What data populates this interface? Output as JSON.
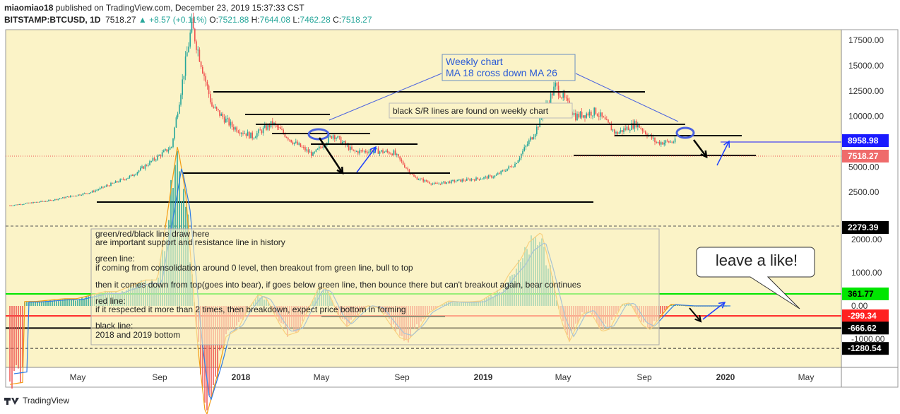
{
  "header": {
    "publisher": "miaomiao18",
    "published_line": " published on TradingView.com, December 23, 2019 15:37:33 CST",
    "symbol": "BITSTAMP:BTCUSD, 1D",
    "last": "7518.27",
    "change": "▲ +8.57 (+0.11%)",
    "o_label": "O:",
    "o_val": "7521.88",
    "h_label": "H:",
    "h_val": "7644.08",
    "l_label": "L:",
    "l_val": "7462.28",
    "c_label": "C:",
    "c_val": "7518.27"
  },
  "footer": {
    "brand": "TradingView"
  },
  "colors": {
    "background": "#fbf3c7",
    "candle_up": "#26a69a",
    "candle_down": "#ef5350",
    "green_line": "#00e600",
    "red_line": "#ff2020",
    "arrow_blue": "#1a3cff",
    "annotation_border": "#6a8fc0"
  },
  "chart_data": [
    {
      "type": "line",
      "subtype": "candlestick",
      "title": "BITSTAMP:BTCUSD, 1D",
      "x": [
        "2017-03",
        "2017-05",
        "2017-07",
        "2017-09",
        "2017-11",
        "2017-12",
        "2018-01",
        "2018-02",
        "2018-03",
        "2018-04",
        "2018-05",
        "2018-06",
        "2018-07",
        "2018-08",
        "2018-09",
        "2018-10",
        "2018-11",
        "2018-12",
        "2019-01",
        "2019-02",
        "2019-03",
        "2019-04",
        "2019-05",
        "2019-06",
        "2019-07",
        "2019-08",
        "2019-09",
        "2019-10",
        "2019-11",
        "2019-12"
      ],
      "series": [
        {
          "values": [
            1200,
            1700,
            2500,
            4100,
            7000,
            19000,
            11000,
            9000,
            8000,
            9300,
            7500,
            6200,
            8200,
            6500,
            6600,
            6400,
            4000,
            3300,
            3600,
            3800,
            4100,
            5300,
            8500,
            13000,
            10000,
            10500,
            8300,
            9300,
            7400,
            7518
          ]
        }
      ],
      "ylim": [
        0,
        19500
      ],
      "yticks": [
        "2500.00",
        "5000.00",
        "7500.00",
        "10000.00",
        "12500.00",
        "15000.00",
        "17500.00"
      ],
      "xticks": [
        "May",
        "Sep",
        "2018",
        "May",
        "Sep",
        "2019",
        "May",
        "Sep",
        "2020",
        "May"
      ],
      "price_labels": {
        "hline": "8958.98",
        "last": "7518.27"
      },
      "annotations": [
        "Weekly chart",
        "MA 18 cross down MA 26",
        "black S/R lines are found on weekly chart"
      ]
    },
    {
      "type": "bar",
      "subtype": "oscillator",
      "ylim": [
        -1500,
        2200
      ],
      "yticks": [
        "-1000.00",
        "0.00",
        "1000.00",
        "2000.00"
      ],
      "levels": {
        "top": "2279.39",
        "green": "361.77",
        "red": "-299.34",
        "black": "-666.62",
        "bottom": "-1280.54"
      },
      "annotations": [
        "green/red/black line draw here",
        "are important support and resistance line in history",
        "green line:",
        "if coming from consolidation around 0 level, then breakout from green line, bull to top",
        "then it comes down from top(goes into bear), if goes below green line, then bounce there but can't breakout again, bear continues",
        "red line:",
        "if it respected it more than 2 times, then breakdown, expect price bottom in forming",
        "black line:",
        "2018 and 2019 bottom",
        "leave a like!"
      ]
    }
  ]
}
